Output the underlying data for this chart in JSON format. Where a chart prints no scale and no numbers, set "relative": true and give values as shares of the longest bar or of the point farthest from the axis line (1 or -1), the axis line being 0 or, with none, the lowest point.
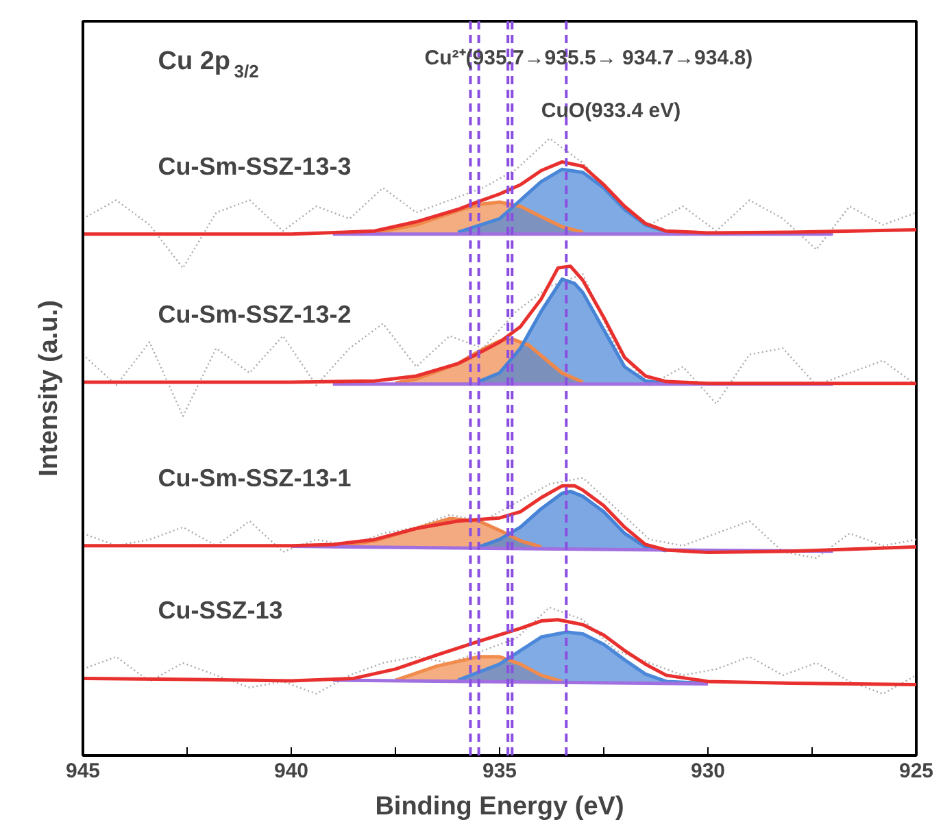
{
  "chart_data": {
    "type": "line",
    "relative": true,
    "xlabel": "Binding Energy (eV)",
    "ylabel": "Intensity (a.u.)",
    "xlim": [
      945,
      925
    ],
    "xticks": [
      945,
      {
        "value": 942.5,
        "label": null
      },
      940,
      {
        "value": 937.5,
        "label": null
      },
      935,
      {
        "value": 932.5,
        "label": null
      },
      930,
      {
        "value": 927.5,
        "label": null
      },
      925
    ],
    "grid": false,
    "legend": false,
    "annotations": [
      "Cu 2p$_{3/2}$",
      "Cu²⁺(935.7→935.5→ 934.7→934.8)",
      "CuO(933.4 eV)"
    ],
    "ref_lines": [
      {
        "axis": "x",
        "value": 935.7,
        "color": "#8a4fe0",
        "line_style": "dashed"
      },
      {
        "axis": "x",
        "value": 935.5,
        "color": "#8a4fe0",
        "line_style": "dashed"
      },
      {
        "axis": "x",
        "value": 934.8,
        "color": "#8a4fe0",
        "line_style": "dashed"
      },
      {
        "axis": "x",
        "value": 934.7,
        "color": "#8a4fe0",
        "line_style": "dashed"
      },
      {
        "axis": "x",
        "value": 933.4,
        "color": "#8a4fe0",
        "line_style": "dashed"
      }
    ],
    "series": [
      {
        "line_style": "dotted",
        "color": "#aaaaaa",
        "x": [
          945,
          944.2,
          943.4,
          942.6,
          941.8,
          941,
          940.2,
          939.4,
          938.6,
          937.8,
          937,
          936.2,
          935.4,
          934.6,
          933.8,
          933,
          932.2,
          931.4,
          930.6,
          929.8,
          929,
          928.2,
          927.4,
          926.6,
          925.8,
          925
        ],
        "values": [
          0.87,
          0.9,
          0.86,
          0.79,
          0.88,
          0.9,
          0.85,
          0.89,
          0.87,
          0.92,
          0.88,
          0.9,
          0.92,
          0.95,
          1.0,
          0.96,
          0.9,
          0.86,
          0.89,
          0.85,
          0.9,
          0.87,
          0.82,
          0.89,
          0.86,
          0.88
        ]
      },
      {
        "line_style": "dotted",
        "color": "#aaaaaa",
        "x": [
          945,
          944.2,
          943.4,
          942.6,
          941.8,
          941,
          940.2,
          939.4,
          938.6,
          937.8,
          937,
          936.2,
          935.4,
          934.6,
          933.8,
          933,
          932.2,
          931.4,
          930.6,
          929.8,
          929,
          928.2,
          927.4,
          926.6,
          925.8,
          925
        ],
        "values": [
          0.65,
          0.6,
          0.67,
          0.55,
          0.66,
          0.62,
          0.68,
          0.6,
          0.66,
          0.7,
          0.63,
          0.68,
          0.66,
          0.72,
          0.76,
          0.78,
          0.66,
          0.6,
          0.63,
          0.57,
          0.65,
          0.66,
          0.6,
          0.62,
          0.64,
          0.6
        ]
      },
      {
        "line_style": "dotted",
        "color": "#aaaaaa",
        "x": [
          945,
          944.2,
          943.4,
          942.6,
          941.8,
          941,
          940.2,
          939.4,
          938.6,
          937.8,
          937,
          936.2,
          935.4,
          934.6,
          933.8,
          933,
          932.2,
          931.4,
          930.6,
          929.8,
          929,
          928.2,
          927.4,
          926.6,
          925.8,
          925
        ],
        "values": [
          0.36,
          0.34,
          0.35,
          0.37,
          0.34,
          0.38,
          0.33,
          0.35,
          0.34,
          0.36,
          0.37,
          0.39,
          0.38,
          0.41,
          0.44,
          0.45,
          0.4,
          0.35,
          0.34,
          0.36,
          0.38,
          0.33,
          0.32,
          0.36,
          0.34,
          0.35
        ]
      },
      {
        "line_style": "dotted",
        "color": "#aaaaaa",
        "x": [
          945,
          944.2,
          943.4,
          942.6,
          941.8,
          941,
          940.2,
          939.4,
          938.6,
          937.8,
          937,
          936.2,
          935.4,
          934.6,
          933.8,
          933,
          932.2,
          931.4,
          930.6,
          929.8,
          929,
          928.2,
          927.4,
          926.6,
          925.8,
          925
        ],
        "values": [
          0.14,
          0.16,
          0.12,
          0.15,
          0.13,
          0.11,
          0.12,
          0.1,
          0.13,
          0.15,
          0.16,
          0.15,
          0.17,
          0.19,
          0.24,
          0.22,
          0.17,
          0.15,
          0.13,
          0.14,
          0.16,
          0.13,
          0.15,
          0.12,
          0.1,
          0.13
        ]
      },
      {
        "color": "#f08a4b",
        "x": [
          938,
          937,
          936,
          935.5,
          935,
          934.5,
          934,
          933.5,
          933
        ],
        "values": [
          0.847,
          0.86,
          0.883,
          0.893,
          0.897,
          0.89,
          0.873,
          0.857,
          0.848
        ],
        "upper": [
          0.847,
          0.86,
          0.883,
          0.893,
          0.897,
          0.89,
          0.873,
          0.857,
          0.848
        ],
        "lower": [
          0.845,
          0.845,
          0.845,
          0.845,
          0.845,
          0.845,
          0.845,
          0.845,
          0.845
        ]
      },
      {
        "color": "#4a86d8",
        "x": [
          936,
          935,
          934.5,
          934,
          933.5,
          933,
          932.5,
          932,
          931.5,
          931,
          930
        ],
        "values": [
          0.848,
          0.87,
          0.9,
          0.93,
          0.95,
          0.945,
          0.92,
          0.885,
          0.86,
          0.849,
          0.845
        ],
        "upper": [
          0.848,
          0.87,
          0.9,
          0.93,
          0.95,
          0.945,
          0.92,
          0.885,
          0.86,
          0.849,
          0.845
        ],
        "lower": [
          0.845,
          0.845,
          0.845,
          0.845,
          0.845,
          0.845,
          0.845,
          0.845,
          0.845,
          0.845,
          0.845
        ]
      },
      {
        "color": "#a070e0",
        "x": [
          939,
          927
        ],
        "values": [
          0.845,
          0.845
        ]
      },
      {
        "name": "Cu-Sm-SSZ-13-3",
        "color": "#e8312f",
        "x": [
          945,
          940,
          938,
          937,
          936,
          935.5,
          935,
          934.5,
          934,
          933.5,
          933,
          932.5,
          932,
          931.5,
          931,
          930,
          928,
          925
        ],
        "values": [
          0.845,
          0.845,
          0.85,
          0.865,
          0.885,
          0.898,
          0.91,
          0.925,
          0.948,
          0.962,
          0.955,
          0.925,
          0.89,
          0.862,
          0.85,
          0.847,
          0.848,
          0.852
        ]
      },
      {
        "color": "#ef884a",
        "x": [
          937.5,
          937,
          936,
          935.5,
          935,
          934.7,
          934.3,
          934,
          933.5,
          933
        ],
        "values": [
          0.604,
          0.61,
          0.635,
          0.655,
          0.672,
          0.675,
          0.665,
          0.648,
          0.62,
          0.605
        ],
        "upper": [
          0.604,
          0.61,
          0.635,
          0.655,
          0.672,
          0.675,
          0.665,
          0.648,
          0.62,
          0.605
        ],
        "lower": [
          0.602,
          0.602,
          0.602,
          0.602,
          0.602,
          0.602,
          0.602,
          0.602,
          0.602,
          0.602
        ]
      },
      {
        "color": "#4884d6",
        "x": [
          935.5,
          935,
          934.5,
          934,
          933.5,
          933.2,
          933,
          932.5,
          932,
          931.5,
          931
        ],
        "values": [
          0.606,
          0.62,
          0.66,
          0.72,
          0.772,
          0.765,
          0.75,
          0.69,
          0.63,
          0.607,
          0.603
        ],
        "upper": [
          0.606,
          0.62,
          0.66,
          0.72,
          0.772,
          0.765,
          0.75,
          0.69,
          0.63,
          0.607,
          0.603
        ],
        "lower": [
          0.602,
          0.602,
          0.602,
          0.602,
          0.602,
          0.602,
          0.602,
          0.602,
          0.602,
          0.602,
          0.602
        ]
      },
      {
        "color": "#a070e0",
        "x": [
          939,
          927
        ],
        "values": [
          0.602,
          0.602
        ]
      },
      {
        "name": "Cu-Sm-SSZ-13-2",
        "color": "#e8312f",
        "x": [
          945,
          940,
          938,
          937,
          936,
          935.5,
          935,
          934.5,
          934,
          933.6,
          933.3,
          933,
          932.5,
          932,
          931.5,
          931,
          930,
          928,
          925
        ],
        "values": [
          0.605,
          0.605,
          0.607,
          0.615,
          0.635,
          0.652,
          0.67,
          0.695,
          0.74,
          0.79,
          0.793,
          0.77,
          0.71,
          0.645,
          0.615,
          0.606,
          0.603,
          0.603,
          0.603
        ]
      },
      {
        "color": "#ee864c",
        "x": [
          939,
          938,
          937,
          936.2,
          935.5,
          935,
          934.5,
          934
        ],
        "values": [
          0.338,
          0.348,
          0.368,
          0.384,
          0.38,
          0.365,
          0.348,
          0.338
        ],
        "upper": [
          0.338,
          0.348,
          0.368,
          0.384,
          0.38,
          0.365,
          0.348,
          0.338
        ],
        "lower": [
          0.338,
          0.338,
          0.337,
          0.337,
          0.336,
          0.336,
          0.336,
          0.335
        ]
      },
      {
        "color": "#4682d5",
        "x": [
          935.5,
          935,
          934.5,
          934,
          933.5,
          933.3,
          933,
          932.5,
          932,
          931.5,
          931
        ],
        "values": [
          0.338,
          0.35,
          0.37,
          0.4,
          0.425,
          0.428,
          0.42,
          0.395,
          0.36,
          0.338,
          0.332
        ],
        "upper": [
          0.338,
          0.35,
          0.37,
          0.4,
          0.425,
          0.428,
          0.42,
          0.395,
          0.36,
          0.338,
          0.332
        ],
        "lower": [
          0.336,
          0.336,
          0.336,
          0.335,
          0.335,
          0.335,
          0.334,
          0.334,
          0.333,
          0.333,
          0.332
        ]
      },
      {
        "color": "#a070e0",
        "x": [
          940,
          931,
          927
        ],
        "values": [
          0.339,
          0.333,
          0.331
        ]
      },
      {
        "name": "Cu-Sm-SSZ-13-1",
        "color": "#e8312f",
        "x": [
          945,
          940,
          939,
          938,
          937,
          936,
          935,
          934.5,
          934,
          933.5,
          933.2,
          933,
          932.5,
          932,
          931.5,
          931,
          930,
          928,
          925
        ],
        "values": [
          0.34,
          0.34,
          0.342,
          0.35,
          0.368,
          0.38,
          0.385,
          0.395,
          0.418,
          0.437,
          0.437,
          0.43,
          0.405,
          0.37,
          0.342,
          0.333,
          0.329,
          0.331,
          0.338
        ]
      },
      {
        "color": "#f18c4d",
        "x": [
          937.5,
          936.5,
          935.5,
          935,
          934.5,
          934,
          933.5
        ],
        "values": [
          0.122,
          0.145,
          0.16,
          0.16,
          0.148,
          0.13,
          0.12
        ],
        "upper": [
          0.122,
          0.145,
          0.16,
          0.16,
          0.148,
          0.13,
          0.12
        ],
        "lower": [
          0.122,
          0.121,
          0.12,
          0.12,
          0.119,
          0.119,
          0.118
        ]
      },
      {
        "color": "#4c88da",
        "x": [
          936,
          935,
          934.5,
          934,
          933.4,
          933,
          932.5,
          932,
          931.5,
          931,
          930
        ],
        "values": [
          0.122,
          0.148,
          0.17,
          0.192,
          0.2,
          0.197,
          0.18,
          0.155,
          0.132,
          0.12,
          0.117
        ],
        "upper": [
          0.122,
          0.148,
          0.17,
          0.192,
          0.2,
          0.197,
          0.18,
          0.155,
          0.132,
          0.12,
          0.117
        ],
        "lower": [
          0.121,
          0.12,
          0.119,
          0.119,
          0.118,
          0.118,
          0.118,
          0.117,
          0.117,
          0.116,
          0.116
        ]
      },
      {
        "color": "#a070e0",
        "x": [
          939,
          930
        ],
        "values": [
          0.122,
          0.116
        ]
      },
      {
        "name": "Cu-SSZ-13",
        "color": "#e8312f",
        "x": [
          945,
          942,
          940,
          938.5,
          937.5,
          936.5,
          935.5,
          934.5,
          934,
          933.6,
          933,
          932.5,
          932,
          931.5,
          931,
          930,
          928,
          925
        ],
        "values": [
          0.125,
          0.123,
          0.121,
          0.125,
          0.14,
          0.163,
          0.185,
          0.206,
          0.218,
          0.22,
          0.212,
          0.195,
          0.17,
          0.148,
          0.13,
          0.12,
          0.117,
          0.115
        ]
      }
    ]
  }
}
